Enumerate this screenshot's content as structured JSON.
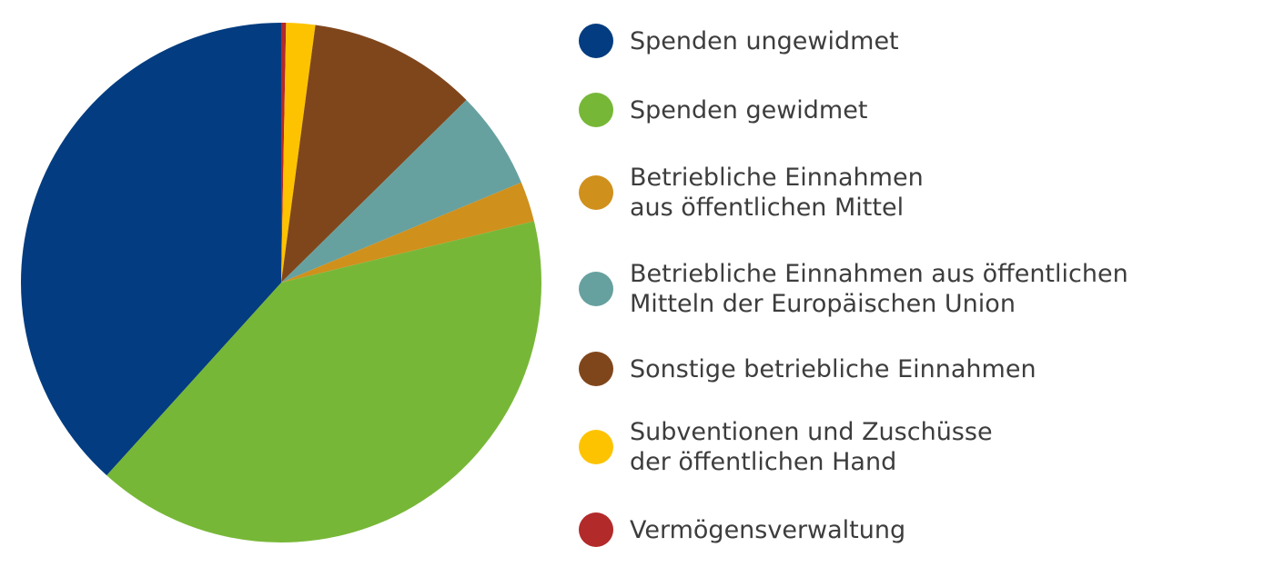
{
  "chart_data": {
    "type": "pie",
    "unit": "percent (estimated)",
    "start": "12 o'clock, clockwise",
    "legend_position": "right",
    "slices": [
      {
        "name": "Vermögensverwaltung",
        "value": 0.3,
        "color": "#b22a2a"
      },
      {
        "name": "Subventionen und Zuschüsse\nder öffentlichen Hand",
        "value": 1.8,
        "color": "#fdc300"
      },
      {
        "name": "Sonstige betriebliche Einnahmen",
        "value": 10.5,
        "color": "#80461b"
      },
      {
        "name": "Betriebliche Einnahmen aus öffentlichen\nMitteln der Europäischen Union",
        "value": 6.1,
        "color": "#66a19f"
      },
      {
        "name": "Betriebliche Einnahmen\naus öffentlichen Mittel",
        "value": 2.5,
        "color": "#d0901c"
      },
      {
        "name": "Spenden gewidmet",
        "value": 40.5,
        "color": "#77b737"
      },
      {
        "name": "Spenden ungewidmet",
        "value": 38.3,
        "color": "#033c80"
      }
    ],
    "legend_order": [
      6,
      5,
      4,
      3,
      2,
      1,
      0
    ]
  }
}
